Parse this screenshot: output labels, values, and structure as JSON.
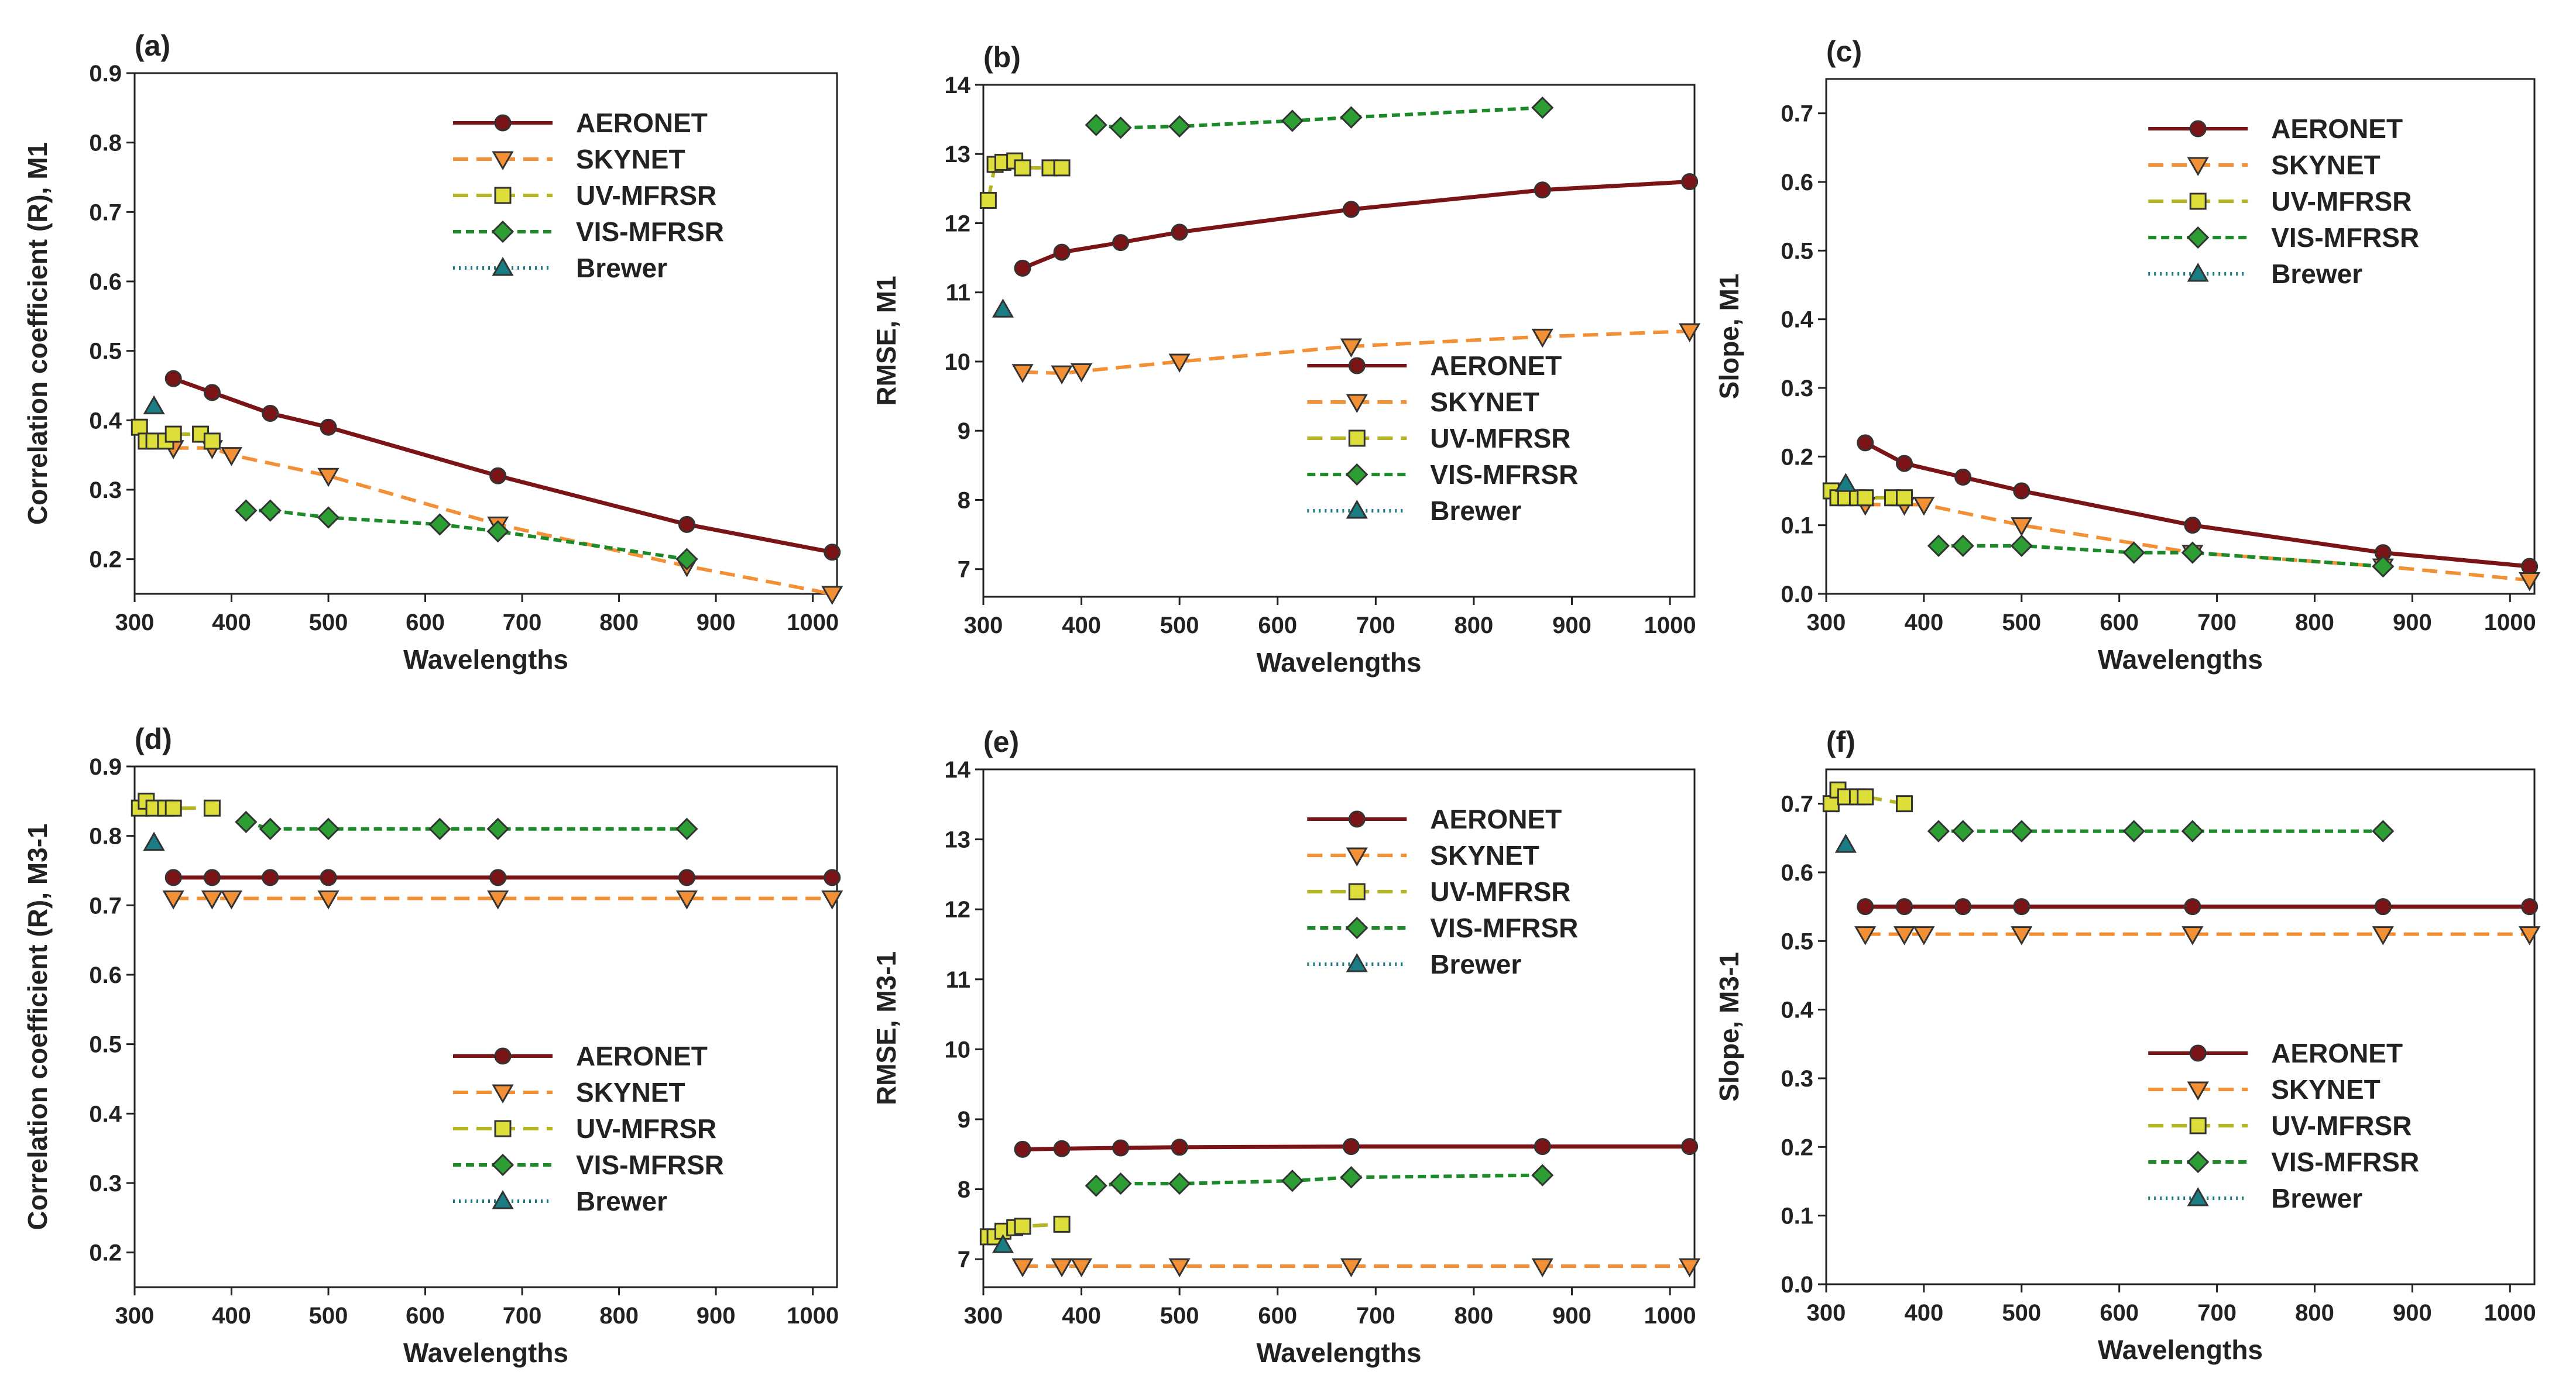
{
  "figure": {
    "xlabel": "Wavelengths",
    "xlim": [
      300,
      1025
    ],
    "xticks": [
      300,
      400,
      500,
      600,
      700,
      800,
      900,
      1000
    ],
    "series_styles": [
      {
        "name": "AERONET",
        "color": "#7b1416",
        "fill": "#7b1416",
        "dash": "",
        "marker": "circle"
      },
      {
        "name": "SKYNET",
        "color": "#f39035",
        "fill": "#f39035",
        "dash": "26,14",
        "marker": "triangle-down"
      },
      {
        "name": "UV-MFRSR",
        "color": "#b5b422",
        "fill": "#dede3a",
        "dash": "26,14",
        "marker": "square"
      },
      {
        "name": "VIS-MFRSR",
        "color": "#1d8a2a",
        "fill": "#2c9e33",
        "dash": "14,8",
        "marker": "diamond"
      },
      {
        "name": "Brewer",
        "color": "#1a7d84",
        "fill": "#1a7d84",
        "dash": "3,7",
        "marker": "triangle-up"
      }
    ]
  },
  "chart_data": [
    {
      "panel": "(a)",
      "type": "line",
      "ylabel": "Correlation coefficient (R), M1",
      "ylim": [
        0.15,
        0.9
      ],
      "yticks": [
        "0.2",
        "0.3",
        "0.4",
        "0.5",
        "0.6",
        "0.7",
        "0.8",
        "0.9"
      ],
      "legend_position": "top-right",
      "series": [
        {
          "name": "AERONET",
          "x": [
            340,
            380,
            440,
            500,
            675,
            870,
            1020
          ],
          "values": [
            0.46,
            0.44,
            0.41,
            0.39,
            0.32,
            0.25,
            0.21
          ]
        },
        {
          "name": "SKYNET",
          "x": [
            340,
            380,
            400,
            500,
            675,
            870,
            1020
          ],
          "values": [
            0.36,
            0.36,
            0.35,
            0.32,
            0.25,
            0.19,
            0.15
          ]
        },
        {
          "name": "UV-MFRSR",
          "x": [
            305,
            312,
            320,
            332,
            340,
            368,
            380
          ],
          "values": [
            0.39,
            0.37,
            0.37,
            0.37,
            0.38,
            0.38,
            0.37
          ]
        },
        {
          "name": "VIS-MFRSR",
          "x": [
            415,
            440,
            500,
            615,
            675,
            870
          ],
          "values": [
            0.27,
            0.27,
            0.26,
            0.25,
            0.24,
            0.2
          ]
        },
        {
          "name": "Brewer",
          "x": [
            320
          ],
          "values": [
            0.42
          ]
        }
      ]
    },
    {
      "panel": "(b)",
      "type": "line",
      "ylabel": "RMSE, M1",
      "ylim": [
        6.6,
        14
      ],
      "yticks": [
        "7",
        "8",
        "9",
        "10",
        "11",
        "12",
        "13",
        "14"
      ],
      "legend_position": "bottom-right",
      "series": [
        {
          "name": "AERONET",
          "x": [
            340,
            380,
            440,
            500,
            675,
            870,
            1020
          ],
          "values": [
            11.35,
            11.58,
            11.72,
            11.87,
            12.2,
            12.48,
            12.6
          ]
        },
        {
          "name": "SKYNET",
          "x": [
            340,
            380,
            400,
            500,
            675,
            870,
            1020
          ],
          "values": [
            9.85,
            9.83,
            9.86,
            10.0,
            10.22,
            10.36,
            10.44
          ]
        },
        {
          "name": "UV-MFRSR",
          "x": [
            305,
            312,
            320,
            332,
            340,
            368,
            380
          ],
          "values": [
            12.33,
            12.85,
            12.88,
            12.9,
            12.8,
            12.8,
            12.8
          ]
        },
        {
          "name": "VIS-MFRSR",
          "x": [
            415,
            440,
            500,
            615,
            675,
            870
          ],
          "values": [
            13.42,
            13.38,
            13.4,
            13.48,
            13.53,
            13.67
          ]
        },
        {
          "name": "Brewer",
          "x": [
            320
          ],
          "values": [
            10.75
          ]
        }
      ]
    },
    {
      "panel": "(c)",
      "type": "line",
      "ylabel": "Slope, M1",
      "ylim": [
        0,
        0.75
      ],
      "yticks": [
        "0.0",
        "0.1",
        "0.2",
        "0.3",
        "0.4",
        "0.5",
        "0.6",
        "0.7"
      ],
      "legend_position": "top-right",
      "series": [
        {
          "name": "AERONET",
          "x": [
            340,
            380,
            440,
            500,
            675,
            870,
            1020
          ],
          "values": [
            0.22,
            0.19,
            0.17,
            0.15,
            0.1,
            0.06,
            0.04
          ]
        },
        {
          "name": "SKYNET",
          "x": [
            340,
            380,
            400,
            500,
            675,
            870,
            1020
          ],
          "values": [
            0.13,
            0.13,
            0.13,
            0.1,
            0.06,
            0.04,
            0.02
          ]
        },
        {
          "name": "UV-MFRSR",
          "x": [
            305,
            312,
            320,
            332,
            340,
            368,
            380
          ],
          "values": [
            0.15,
            0.14,
            0.14,
            0.14,
            0.14,
            0.14,
            0.14
          ]
        },
        {
          "name": "VIS-MFRSR",
          "x": [
            415,
            440,
            500,
            615,
            675,
            870
          ],
          "values": [
            0.07,
            0.07,
            0.07,
            0.06,
            0.06,
            0.04
          ]
        },
        {
          "name": "Brewer",
          "x": [
            320
          ],
          "values": [
            0.16
          ]
        }
      ]
    },
    {
      "panel": "(d)",
      "type": "line",
      "ylabel": "Correlation coefficient (R), M3-1",
      "ylim": [
        0.15,
        0.9
      ],
      "yticks": [
        "0.2",
        "0.3",
        "0.4",
        "0.5",
        "0.6",
        "0.7",
        "0.8",
        "0.9"
      ],
      "legend_position": "bottom-right",
      "series": [
        {
          "name": "AERONET",
          "x": [
            340,
            380,
            440,
            500,
            675,
            870,
            1020
          ],
          "values": [
            0.74,
            0.74,
            0.74,
            0.74,
            0.74,
            0.74,
            0.74
          ]
        },
        {
          "name": "SKYNET",
          "x": [
            340,
            380,
            400,
            500,
            675,
            870,
            1020
          ],
          "values": [
            0.71,
            0.71,
            0.71,
            0.71,
            0.71,
            0.71,
            0.71
          ]
        },
        {
          "name": "UV-MFRSR",
          "x": [
            305,
            312,
            320,
            332,
            340,
            380
          ],
          "values": [
            0.84,
            0.85,
            0.84,
            0.84,
            0.84,
            0.84
          ]
        },
        {
          "name": "VIS-MFRSR",
          "x": [
            415,
            440,
            500,
            615,
            675,
            870
          ],
          "values": [
            0.82,
            0.81,
            0.81,
            0.81,
            0.81,
            0.81
          ]
        },
        {
          "name": "Brewer",
          "x": [
            320
          ],
          "values": [
            0.79
          ]
        }
      ]
    },
    {
      "panel": "(e)",
      "type": "line",
      "ylabel": "RMSE, M3-1",
      "ylim": [
        6.6,
        14
      ],
      "yticks": [
        "7",
        "8",
        "9",
        "10",
        "11",
        "12",
        "13",
        "14"
      ],
      "legend_position": "top-right",
      "series": [
        {
          "name": "AERONET",
          "x": [
            340,
            380,
            440,
            500,
            675,
            870,
            1020
          ],
          "values": [
            8.57,
            8.58,
            8.59,
            8.6,
            8.61,
            8.61,
            8.61
          ]
        },
        {
          "name": "SKYNET",
          "x": [
            340,
            380,
            400,
            500,
            675,
            870,
            1020
          ],
          "values": [
            6.9,
            6.9,
            6.9,
            6.9,
            6.9,
            6.9,
            6.9
          ]
        },
        {
          "name": "UV-MFRSR",
          "x": [
            305,
            312,
            320,
            332,
            340,
            380
          ],
          "values": [
            7.32,
            7.32,
            7.4,
            7.45,
            7.47,
            7.5
          ]
        },
        {
          "name": "VIS-MFRSR",
          "x": [
            415,
            440,
            500,
            615,
            675,
            870
          ],
          "values": [
            8.05,
            8.08,
            8.08,
            8.12,
            8.17,
            8.2
          ]
        },
        {
          "name": "Brewer",
          "x": [
            320
          ],
          "values": [
            7.2
          ]
        }
      ]
    },
    {
      "panel": "(f)",
      "type": "line",
      "ylabel": "Slope, M3-1",
      "ylim": [
        0,
        0.75
      ],
      "yticks": [
        "0.0",
        "0.1",
        "0.2",
        "0.3",
        "0.4",
        "0.5",
        "0.6",
        "0.7"
      ],
      "legend_position": "bottom-right",
      "series": [
        {
          "name": "AERONET",
          "x": [
            340,
            380,
            440,
            500,
            675,
            870,
            1020
          ],
          "values": [
            0.55,
            0.55,
            0.55,
            0.55,
            0.55,
            0.55,
            0.55
          ]
        },
        {
          "name": "SKYNET",
          "x": [
            340,
            380,
            400,
            500,
            675,
            870,
            1020
          ],
          "values": [
            0.51,
            0.51,
            0.51,
            0.51,
            0.51,
            0.51,
            0.51
          ]
        },
        {
          "name": "UV-MFRSR",
          "x": [
            305,
            312,
            320,
            332,
            340,
            380
          ],
          "values": [
            0.7,
            0.72,
            0.71,
            0.71,
            0.71,
            0.7
          ]
        },
        {
          "name": "VIS-MFRSR",
          "x": [
            415,
            440,
            500,
            615,
            675,
            870
          ],
          "values": [
            0.66,
            0.66,
            0.66,
            0.66,
            0.66,
            0.66
          ]
        },
        {
          "name": "Brewer",
          "x": [
            320
          ],
          "values": [
            0.64
          ]
        }
      ]
    }
  ]
}
